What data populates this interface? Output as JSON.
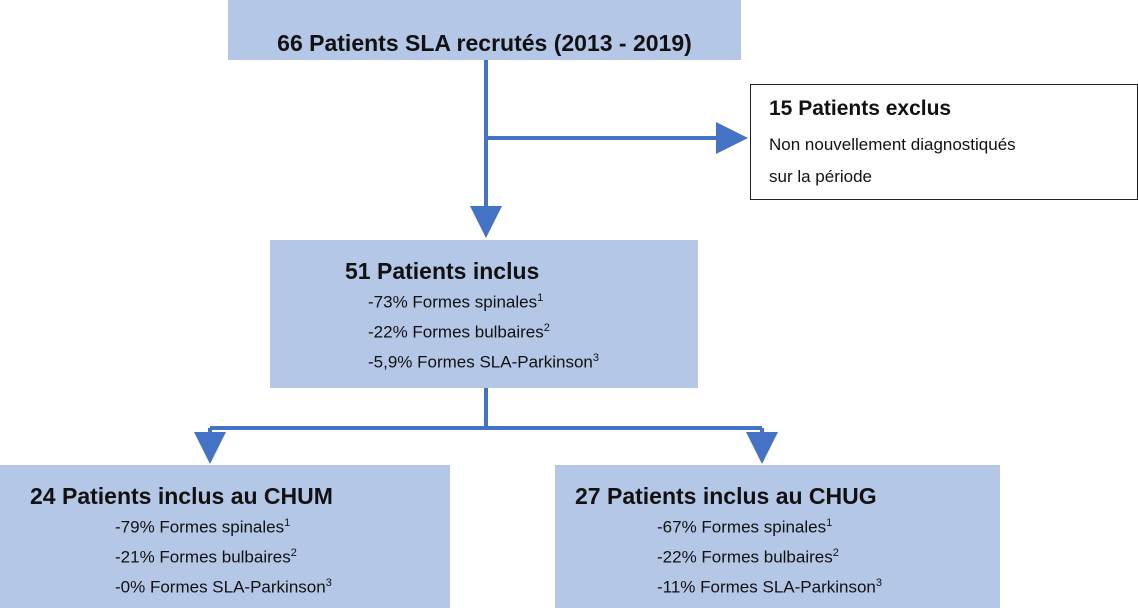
{
  "nodes": {
    "recruited": {
      "title": "66 Patients SLA recrutés (2013 - 2019)"
    },
    "excluded": {
      "title": "15 Patients exclus",
      "reason": [
        "Non nouvellement diagnostiqués",
        "sur la période"
      ]
    },
    "included": {
      "title": "51 Patients inclus",
      "items": [
        {
          "text": "-73% Formes spinales",
          "note": "1"
        },
        {
          "text": "-22% Formes bulbaires",
          "note": "2"
        },
        {
          "text": "-5,9% Formes SLA-Parkinson",
          "note": "3"
        }
      ]
    },
    "chum": {
      "title": "24 Patients inclus au CHUM",
      "items": [
        {
          "text": "-79% Formes spinales",
          "note": "1"
        },
        {
          "text": "-21% Formes bulbaires",
          "note": "2"
        },
        {
          "text": "-0% Formes SLA-Parkinson",
          "note": "3"
        }
      ]
    },
    "chug": {
      "title": "27 Patients inclus au CHUG",
      "items": [
        {
          "text": "-67% Formes spinales",
          "note": "1"
        },
        {
          "text": "-22% Formes bulbaires",
          "note": "2"
        },
        {
          "text": "-11% Formes SLA-Parkinson",
          "note": "3"
        }
      ]
    }
  }
}
